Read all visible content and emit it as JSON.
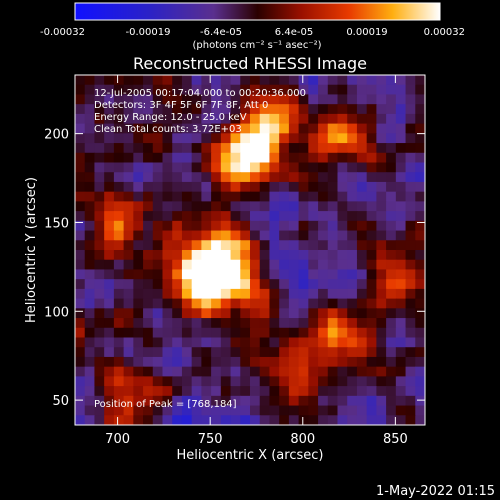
{
  "chart_data": {
    "type": "heatmap",
    "title": "Reconstructed RHESSI Image",
    "xlabel": "Heliocentric X (arcsec)",
    "ylabel": "Heliocentric Y (arcsec)",
    "xlim": [
      677,
      866
    ],
    "ylim": [
      36,
      233
    ],
    "xticks": [
      700,
      750,
      800,
      850
    ],
    "yticks": [
      50,
      100,
      150,
      200
    ],
    "colorbar": {
      "range": [
        -0.00032,
        0.00032
      ],
      "tick_labels": [
        "-0.00032",
        "-0.00019",
        "-6.4e-05",
        "6.4e-05",
        "0.00019",
        "0.00032"
      ],
      "unit_label": "(photons cm⁻² s⁻¹ asec⁻²)",
      "colormap": "blue-purple-red-yellow-white"
    },
    "annotations": [
      "12-Jul-2005 00:17:04.000 to 00:20:36.000",
      "Detectors: 3F 4F 5F 6F 7F 8F, Att 0",
      "Energy Range: 12.0 - 25.0 keV",
      "Clean     Total counts: 3.72E+03"
    ],
    "peak_label": "Position of Peak = [768,184]",
    "peak": [
      768,
      184
    ],
    "sources": [
      {
        "x": 768,
        "y": 184,
        "amplitude": 1.0
      },
      {
        "x": 780,
        "y": 204,
        "amplitude": 0.8
      },
      {
        "x": 752,
        "y": 128,
        "amplitude": 0.95
      },
      {
        "x": 738,
        "y": 110,
        "amplitude": 0.7
      },
      {
        "x": 765,
        "y": 115,
        "amplitude": 0.6
      },
      {
        "x": 820,
        "y": 195,
        "amplitude": 0.55
      },
      {
        "x": 700,
        "y": 150,
        "amplitude": 0.45
      },
      {
        "x": 705,
        "y": 55,
        "amplitude": 0.45
      },
      {
        "x": 820,
        "y": 85,
        "amplitude": 0.6
      },
      {
        "x": 850,
        "y": 120,
        "amplitude": 0.5
      },
      {
        "x": 795,
        "y": 65,
        "amplitude": 0.5
      }
    ]
  },
  "footer": {
    "date": "1-May-2022 01:15"
  }
}
